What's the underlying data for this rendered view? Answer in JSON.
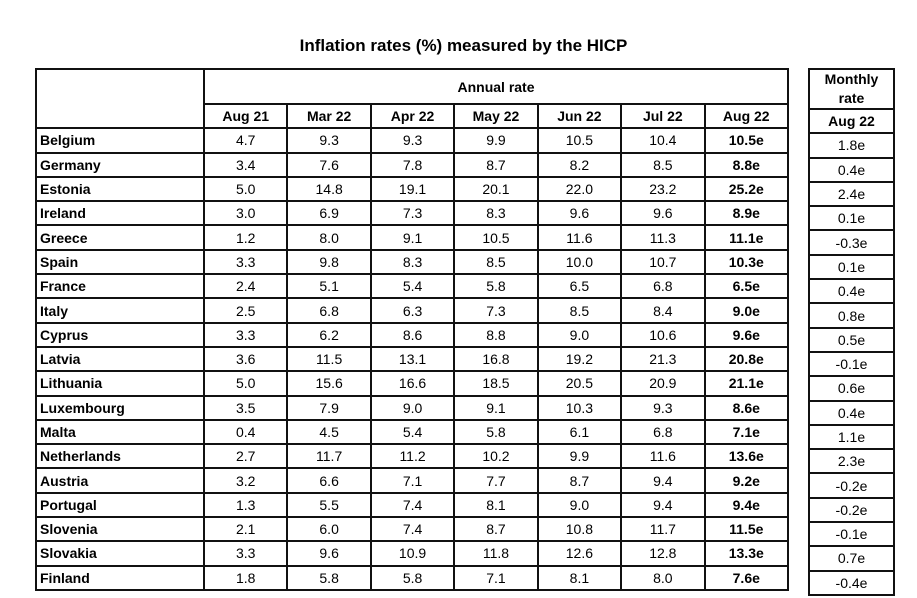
{
  "title": "Inflation rates (%) measured by the HICP",
  "annual_header": "Annual rate",
  "monthly_header": "Monthly rate",
  "annual_columns": [
    "Aug 21",
    "Mar 22",
    "Apr 22",
    "May 22",
    "Jun 22",
    "Jul 22",
    "Aug 22"
  ],
  "monthly_column": "Aug 22",
  "rows": [
    {
      "country": "Belgium",
      "annual": [
        "4.7",
        "9.3",
        "9.3",
        "9.9",
        "10.5",
        "10.4",
        "10.5e"
      ],
      "monthly": "1.8e"
    },
    {
      "country": "Germany",
      "annual": [
        "3.4",
        "7.6",
        "7.8",
        "8.7",
        "8.2",
        "8.5",
        "8.8e"
      ],
      "monthly": "0.4e"
    },
    {
      "country": "Estonia",
      "annual": [
        "5.0",
        "14.8",
        "19.1",
        "20.1",
        "22.0",
        "23.2",
        "25.2e"
      ],
      "monthly": "2.4e"
    },
    {
      "country": "Ireland",
      "annual": [
        "3.0",
        "6.9",
        "7.3",
        "8.3",
        "9.6",
        "9.6",
        "8.9e"
      ],
      "monthly": "0.1e"
    },
    {
      "country": "Greece",
      "annual": [
        "1.2",
        "8.0",
        "9.1",
        "10.5",
        "11.6",
        "11.3",
        "11.1e"
      ],
      "monthly": "-0.3e"
    },
    {
      "country": "Spain",
      "annual": [
        "3.3",
        "9.8",
        "8.3",
        "8.5",
        "10.0",
        "10.7",
        "10.3e"
      ],
      "monthly": "0.1e"
    },
    {
      "country": "France",
      "annual": [
        "2.4",
        "5.1",
        "5.4",
        "5.8",
        "6.5",
        "6.8",
        "6.5e"
      ],
      "monthly": "0.4e"
    },
    {
      "country": "Italy",
      "annual": [
        "2.5",
        "6.8",
        "6.3",
        "7.3",
        "8.5",
        "8.4",
        "9.0e"
      ],
      "monthly": "0.8e"
    },
    {
      "country": "Cyprus",
      "annual": [
        "3.3",
        "6.2",
        "8.6",
        "8.8",
        "9.0",
        "10.6",
        "9.6e"
      ],
      "monthly": "0.5e"
    },
    {
      "country": "Latvia",
      "annual": [
        "3.6",
        "11.5",
        "13.1",
        "16.8",
        "19.2",
        "21.3",
        "20.8e"
      ],
      "monthly": "-0.1e"
    },
    {
      "country": "Lithuania",
      "annual": [
        "5.0",
        "15.6",
        "16.6",
        "18.5",
        "20.5",
        "20.9",
        "21.1e"
      ],
      "monthly": "0.6e"
    },
    {
      "country": "Luxembourg",
      "annual": [
        "3.5",
        "7.9",
        "9.0",
        "9.1",
        "10.3",
        "9.3",
        "8.6e"
      ],
      "monthly": "0.4e"
    },
    {
      "country": "Malta",
      "annual": [
        "0.4",
        "4.5",
        "5.4",
        "5.8",
        "6.1",
        "6.8",
        "7.1e"
      ],
      "monthly": "1.1e"
    },
    {
      "country": "Netherlands",
      "annual": [
        "2.7",
        "11.7",
        "11.2",
        "10.2",
        "9.9",
        "11.6",
        "13.6e"
      ],
      "monthly": "2.3e"
    },
    {
      "country": "Austria",
      "annual": [
        "3.2",
        "6.6",
        "7.1",
        "7.7",
        "8.7",
        "9.4",
        "9.2e"
      ],
      "monthly": "-0.2e"
    },
    {
      "country": "Portugal",
      "annual": [
        "1.3",
        "5.5",
        "7.4",
        "8.1",
        "9.0",
        "9.4",
        "9.4e"
      ],
      "monthly": "-0.2e"
    },
    {
      "country": "Slovenia",
      "annual": [
        "2.1",
        "6.0",
        "7.4",
        "8.7",
        "10.8",
        "11.7",
        "11.5e"
      ],
      "monthly": "-0.1e"
    },
    {
      "country": "Slovakia",
      "annual": [
        "3.3",
        "9.6",
        "10.9",
        "11.8",
        "12.6",
        "12.8",
        "13.3e"
      ],
      "monthly": "0.7e"
    },
    {
      "country": "Finland",
      "annual": [
        "1.8",
        "5.8",
        "5.8",
        "7.1",
        "8.1",
        "8.0",
        "7.6e"
      ],
      "monthly": "-0.4e"
    }
  ]
}
